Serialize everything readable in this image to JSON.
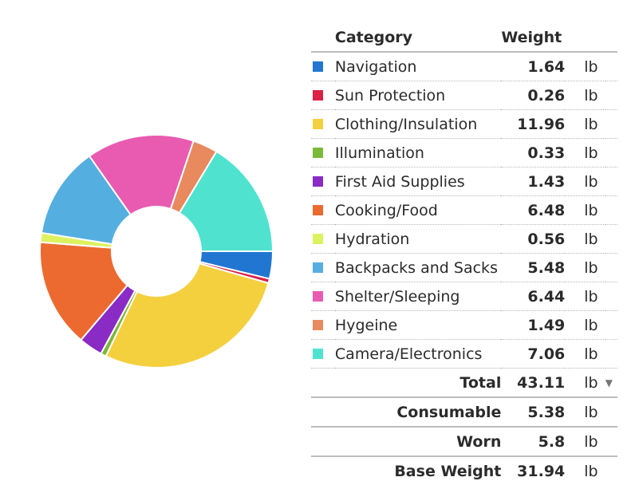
{
  "chart_data": {
    "type": "pie",
    "style": "donut",
    "columns": {
      "category": "Category",
      "weight": "Weight"
    },
    "unit": "lb",
    "categories": [
      {
        "name": "Navigation",
        "value": 1.64,
        "color": "#2176d2"
      },
      {
        "name": "Sun Protection",
        "value": 0.26,
        "color": "#dc1f45"
      },
      {
        "name": "Clothing/Insulation",
        "value": 11.96,
        "color": "#f4d03f"
      },
      {
        "name": "Illumination",
        "value": 0.33,
        "color": "#7cb83b"
      },
      {
        "name": "First Aid Supplies",
        "value": 1.43,
        "color": "#8a2bc5"
      },
      {
        "name": "Cooking/Food",
        "value": 6.48,
        "color": "#ec6a30"
      },
      {
        "name": "Hydration",
        "value": 0.56,
        "color": "#dcf25f"
      },
      {
        "name": "Backpacks and Sacks",
        "value": 5.48,
        "color": "#55aee0"
      },
      {
        "name": "Shelter/Sleeping",
        "value": 6.44,
        "color": "#e85bb0"
      },
      {
        "name": "Hygeine",
        "value": 1.49,
        "color": "#e88a5e"
      },
      {
        "name": "Camera/Electronics",
        "value": 7.06,
        "color": "#4fe3cf"
      }
    ],
    "summary": [
      {
        "key": "total",
        "label": "Total",
        "value": 43.11
      },
      {
        "key": "consumable",
        "label": "Consumable",
        "value": 5.38
      },
      {
        "key": "worn",
        "label": "Worn",
        "value": 5.8
      },
      {
        "key": "base",
        "label": "Base Weight",
        "value": 31.94
      }
    ],
    "unit_menu_icon": "caret-down-icon"
  }
}
